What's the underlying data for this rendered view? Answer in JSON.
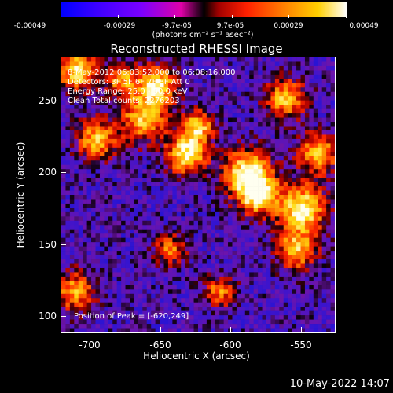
{
  "colorbar": {
    "ticks": [
      "-0.00049",
      "-0.00029",
      "-9.7e-05",
      "9.7e-05",
      "0.00029",
      "0.00049"
    ],
    "unit": "(photons cm⁻² s⁻¹ asec⁻²)",
    "colors": [
      "#0000ff",
      "#7a00ff",
      "#e000a8",
      "#000000",
      "#ff2000",
      "#ff8000",
      "#ffd000",
      "#ffffff"
    ]
  },
  "title": "Reconstructed RHESSI Image",
  "info": {
    "line1": "8-May-2012 06:03:52.000 to 06:08:16.000",
    "line2": "Detectors: 3F 5F 6F 7F 8F  Att 0",
    "line3": "Energy Range: 25.0 - 50.0 keV",
    "line4": "Clean    Total counts: 2276203",
    "peak": "Position of Peak = [-620,249]"
  },
  "axes": {
    "xlabel": "Heliocentric X (arcsec)",
    "ylabel": "Heliocentric Y (arcsec)",
    "xticks": [
      "-700",
      "-650",
      "-600",
      "-550"
    ],
    "yticks": [
      "250",
      "200",
      "150",
      "100"
    ],
    "xlim": [
      -720,
      -525
    ],
    "ylim": [
      88,
      280
    ]
  },
  "timestamp": "10-May-2022 14:07"
}
